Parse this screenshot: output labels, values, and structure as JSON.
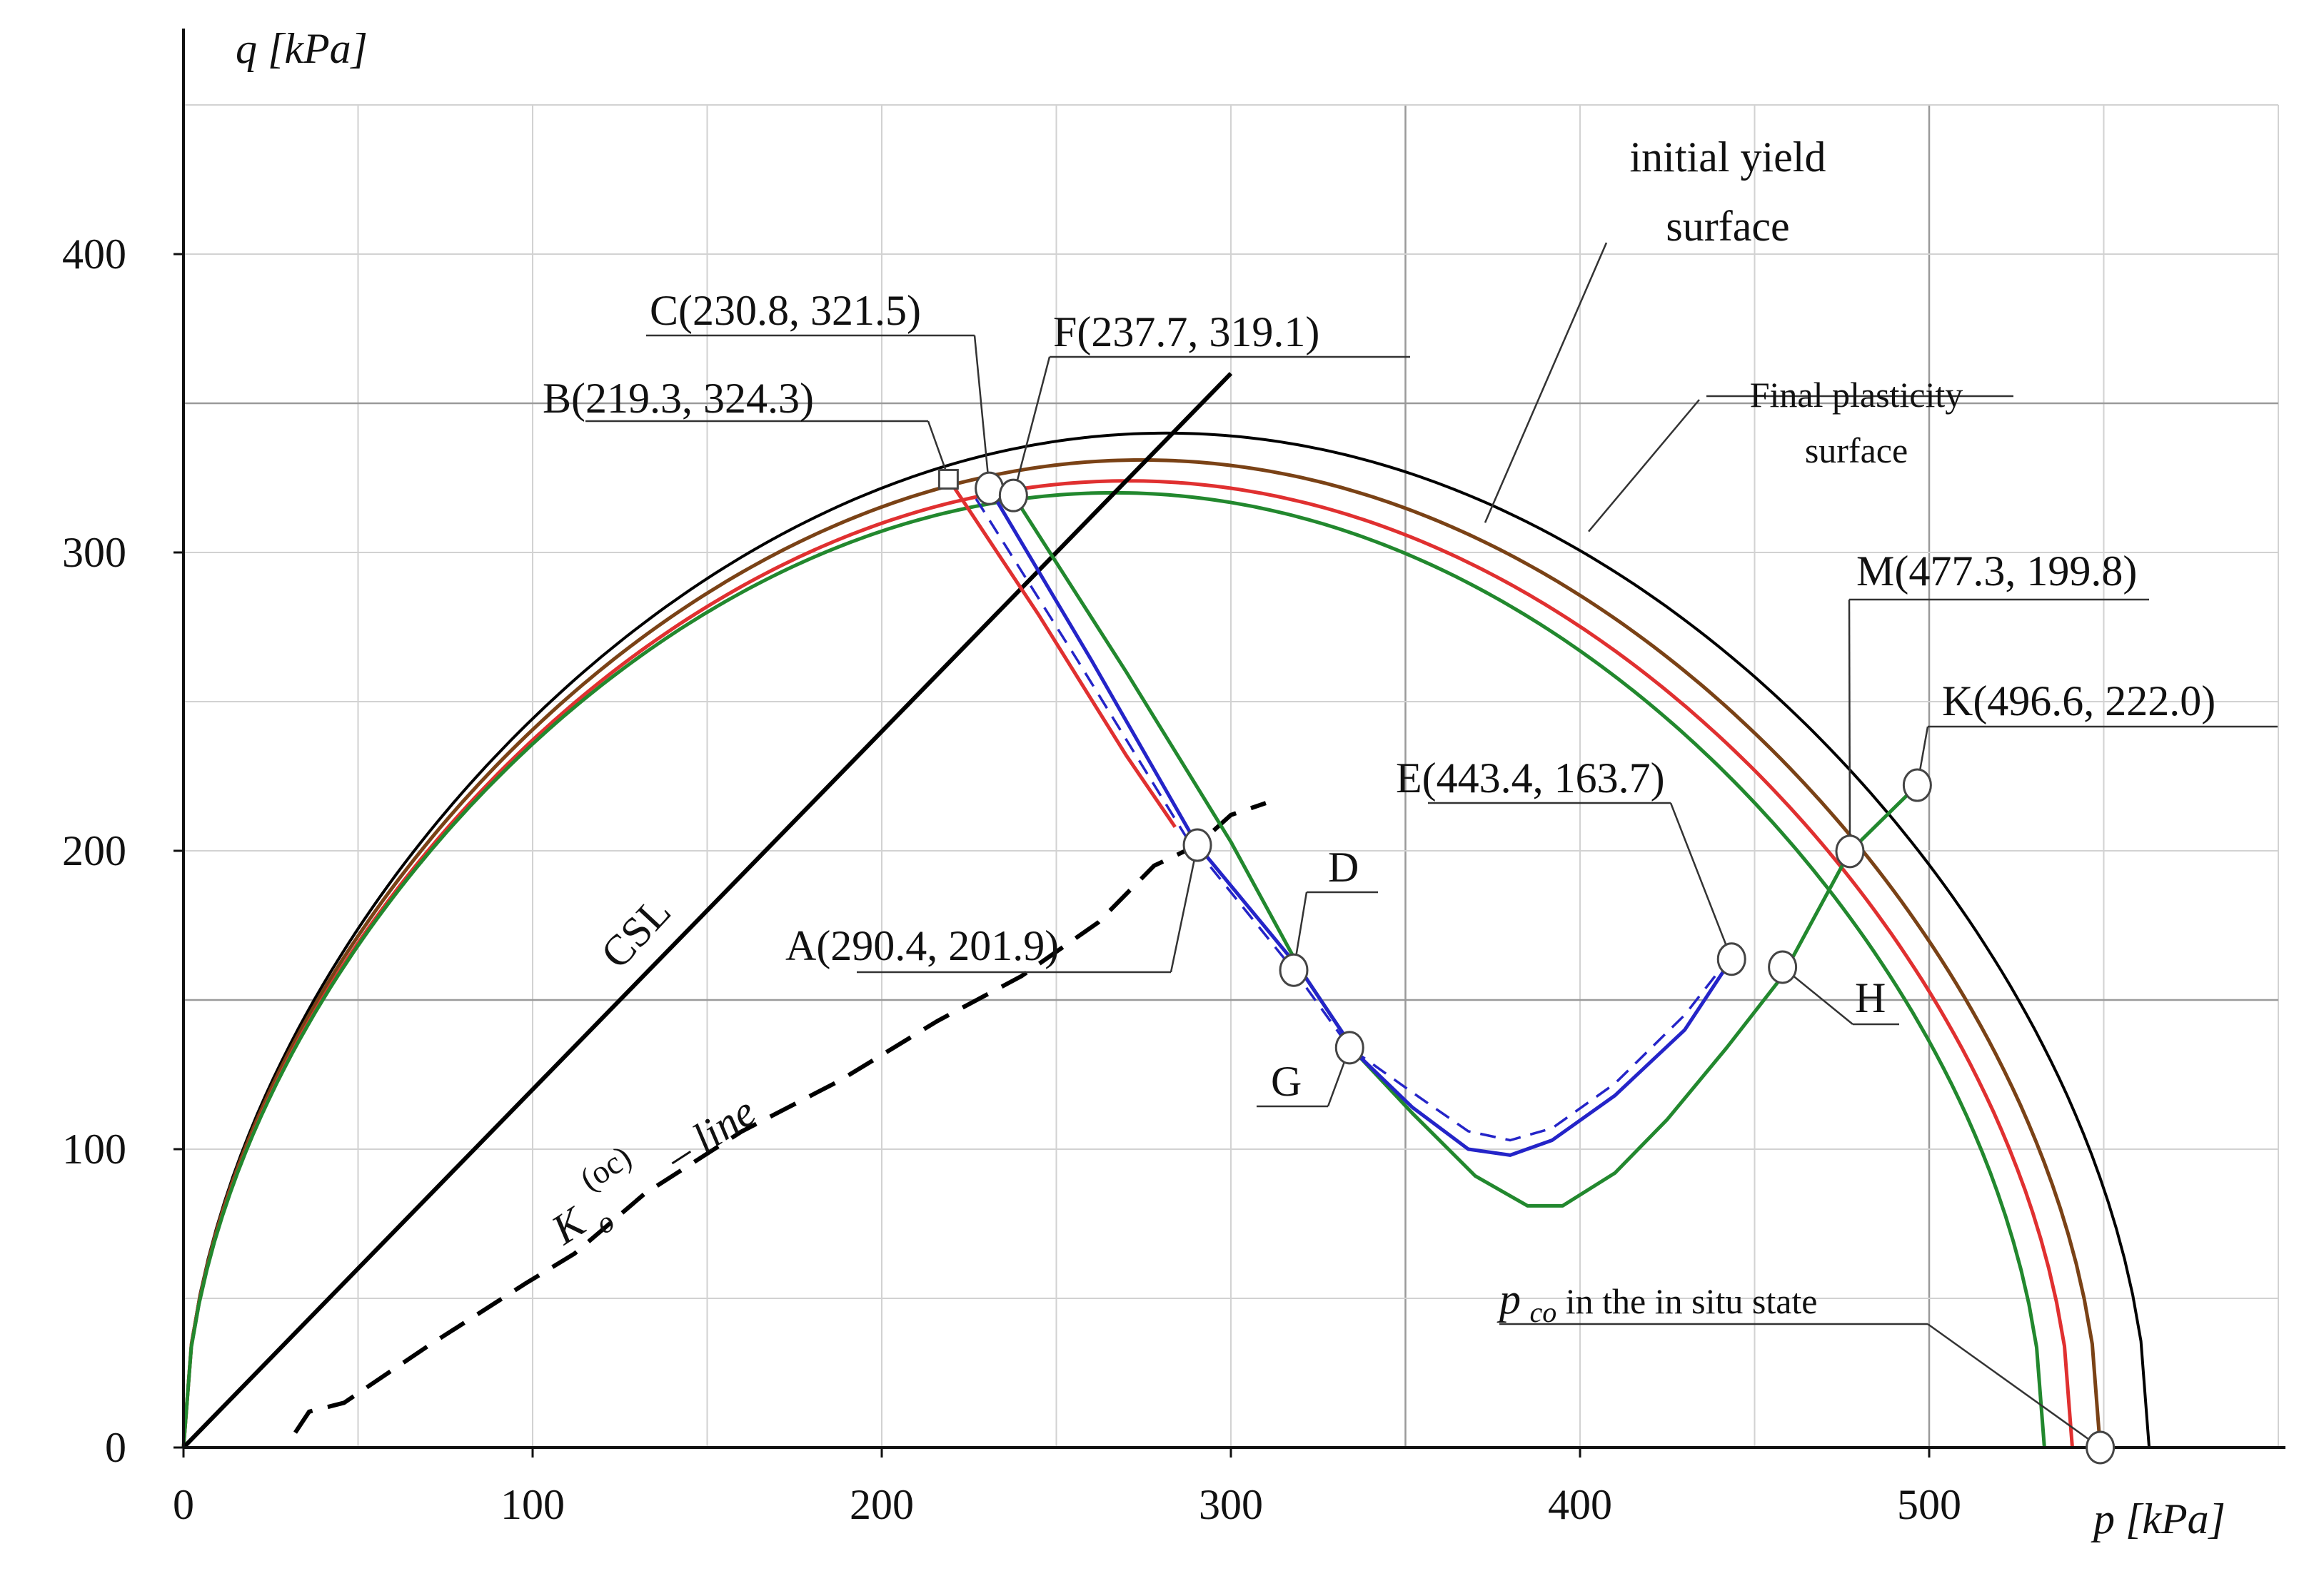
{
  "chart_data": {
    "type": "line",
    "xlabel": "p [kPa]",
    "ylabel": "q [kPa]",
    "xlim": [
      0,
      600
    ],
    "ylim": [
      0,
      450
    ],
    "x_ticks": [
      0,
      100,
      200,
      300,
      400,
      500
    ],
    "y_ticks": [
      0,
      100,
      200,
      300,
      400
    ],
    "grid": true,
    "surfaces": [
      {
        "name": "initial yield surface",
        "color": "#000000",
        "pc": 563,
        "peak": 340
      },
      {
        "name": "Final plasticity surface",
        "color": "#7a4216",
        "pc": 549,
        "peak": 331
      },
      {
        "name": "red yield surface",
        "color": "#e03030",
        "pc": 541,
        "peak": 324
      },
      {
        "name": "green yield surface",
        "color": "#22882e",
        "pc": 533,
        "peak": 320
      }
    ],
    "lines": [
      {
        "name": "CSL",
        "color": "#000000",
        "style": "solid",
        "x": [
          0,
          300
        ],
        "y": [
          0,
          360
        ]
      },
      {
        "name": "Ko(oc) - line",
        "color": "#000000",
        "style": "dashed",
        "x": [
          32,
          36,
          46,
          70,
          98,
          112,
          132,
          160,
          188,
          216,
          240,
          262,
          278,
          290.4,
          300,
          310
        ],
        "y": [
          5,
          12,
          15,
          34,
          55,
          65,
          85,
          106,
          123,
          143,
          158,
          176,
          195,
          201.9,
          212,
          216
        ]
      }
    ],
    "series": [
      {
        "name": "red path",
        "color": "#e03030",
        "x": [
          219.3,
          245,
          270,
          284
        ],
        "y": [
          324.3,
          279,
          232,
          208
        ]
      },
      {
        "name": "green path",
        "color": "#22882e",
        "x": [
          237.7,
          270,
          300,
          320,
          336,
          352,
          370,
          385,
          395,
          410,
          425,
          442,
          458,
          477.3,
          496.6
        ],
        "y": [
          319.1,
          260,
          203,
          160,
          132,
          112,
          91,
          81,
          81,
          92,
          110,
          134,
          158,
          199.8,
          222.0
        ]
      },
      {
        "name": "blue path",
        "color": "#2424c8",
        "x": [
          230.8,
          260,
          290.4,
          320,
          336,
          352,
          368,
          380,
          392,
          410,
          430,
          443.4
        ],
        "y": [
          321.5,
          264,
          201.9,
          160,
          132,
          114,
          100,
          98,
          103,
          118,
          140,
          163.7
        ]
      },
      {
        "name": "blue dashed path",
        "color": "#2424c8",
        "x": [
          227,
          256,
          287,
          318,
          334,
          352,
          368,
          380,
          392,
          410,
          430,
          442
        ],
        "y": [
          318,
          264,
          205,
          160,
          134,
          119,
          106,
          103,
          107,
          122,
          145,
          163
        ]
      }
    ],
    "points": [
      {
        "name": "A",
        "x": 290.4,
        "y": 201.9
      },
      {
        "name": "B",
        "x": 219.3,
        "y": 324.3
      },
      {
        "name": "C",
        "x": 230.8,
        "y": 321.5
      },
      {
        "name": "D",
        "x": 318,
        "y": 160
      },
      {
        "name": "E",
        "x": 443.4,
        "y": 163.7
      },
      {
        "name": "F",
        "x": 237.7,
        "y": 319.1
      },
      {
        "name": "G",
        "x": 334,
        "y": 134
      },
      {
        "name": "H",
        "x": 458,
        "y": 161
      },
      {
        "name": "K",
        "x": 496.6,
        "y": 222.0
      },
      {
        "name": "M",
        "x": 477.3,
        "y": 199.8
      },
      {
        "name": "pco",
        "x": 549,
        "y": 0
      }
    ]
  },
  "labels": {
    "y_title_var": "q",
    "y_title_unit": "[kPa]",
    "x_title_var": "p",
    "x_title_unit": "[kPa]",
    "initial_yield_1": "initial yield",
    "initial_yield_2": "surface",
    "final_1": "Final plasticity",
    "final_2": "surface",
    "csl": "CSL",
    "ko_base": "K",
    "ko_sub": "o",
    "ko_sup": "(oc)",
    "ko_line": "– line",
    "A": "A(290.4, 201.9)",
    "B": "B(219.3, 324.3)",
    "C": "C(230.8, 321.5)",
    "D": "D",
    "E": "E(443.4, 163.7)",
    "F": "F(237.7, 319.1)",
    "G": "G",
    "H": "H",
    "K": "K(496.6, 222.0)",
    "M": "M(477.3, 199.8)",
    "pco_var": "p",
    "pco_sub": "co",
    "pco_rest": " in the in situ state"
  }
}
